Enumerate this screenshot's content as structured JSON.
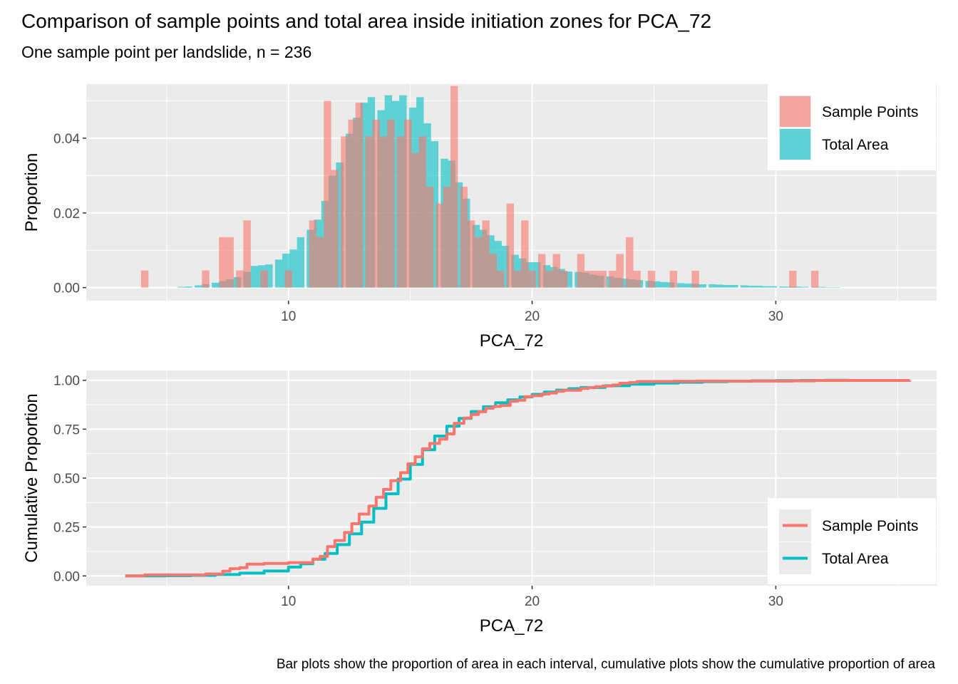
{
  "title": "Comparison of sample points and total area inside initiation zones for PCA_72",
  "subtitle": "One sample point per landslide, n = 236",
  "caption": "Bar plots show the proportion of area in each interval, cumulative plots show the cumulative proportion of area",
  "colors": {
    "sample": "#F8766D",
    "area": "#00BFC4",
    "panel": "#EBEBEB",
    "grid": "#FFFFFF"
  },
  "chart_data": [
    {
      "type": "bar",
      "xlabel": "PCA_72",
      "ylabel": "Proportion",
      "xlim": [
        1.7,
        36.6
      ],
      "ylim": [
        -0.0035,
        0.0545
      ],
      "xticks": [
        10,
        20,
        30
      ],
      "yticks": [
        0.0,
        0.02,
        0.04
      ],
      "ytick_labels": [
        "0.00",
        "0.02",
        "0.04"
      ],
      "legend_position": "top-right",
      "bin_width": 0.333,
      "series": [
        {
          "name": "Sample Points",
          "x": [
            4.1,
            6.6,
            7.3,
            7.6,
            8.0,
            8.3,
            9.0,
            10.0,
            11.0,
            11.3,
            11.6,
            11.9,
            12.3,
            12.6,
            12.9,
            13.3,
            13.6,
            13.9,
            14.2,
            14.6,
            14.9,
            15.2,
            15.5,
            15.8,
            16.2,
            16.5,
            16.8,
            17.2,
            17.5,
            17.8,
            18.1,
            18.4,
            18.7,
            19.1,
            19.4,
            19.7,
            20.0,
            20.4,
            20.7,
            21.0,
            21.3,
            22.0,
            22.3,
            22.6,
            22.9,
            23.3,
            23.6,
            24.0,
            24.3,
            24.9,
            25.8,
            26.7,
            30.7,
            31.6
          ],
          "values": [
            0.0046,
            0.0046,
            0.0135,
            0.0135,
            0.0046,
            0.018,
            0.0046,
            0.0046,
            0.018,
            0.0135,
            0.05,
            0.0315,
            0.0405,
            0.045,
            0.0495,
            0.0405,
            0.045,
            0.0405,
            0.045,
            0.0405,
            0.045,
            0.036,
            0.0405,
            0.027,
            0.0225,
            0.027,
            0.054,
            0.027,
            0.018,
            0.0135,
            0.018,
            0.009,
            0.0045,
            0.0225,
            0.0045,
            0.018,
            0.0045,
            0.009,
            0.0045,
            0.009,
            0.0045,
            0.009,
            0.0045,
            0.0045,
            0.0045,
            0.0045,
            0.009,
            0.0135,
            0.0045,
            0.0045,
            0.0045,
            0.0045,
            0.0045,
            0.0045
          ]
        },
        {
          "name": "Total Area",
          "x": [
            5.6,
            5.9,
            6.3,
            6.6,
            7.0,
            7.3,
            7.6,
            7.9,
            8.3,
            8.6,
            8.9,
            9.2,
            9.6,
            9.9,
            10.2,
            10.5,
            10.9,
            11.2,
            11.5,
            11.8,
            12.1,
            12.5,
            12.8,
            13.1,
            13.4,
            13.8,
            14.1,
            14.4,
            14.7,
            15.1,
            15.4,
            15.7,
            16.0,
            16.4,
            16.7,
            17.0,
            17.3,
            17.7,
            18.0,
            18.3,
            18.6,
            18.9,
            19.3,
            19.6,
            19.9,
            20.2,
            20.6,
            20.9,
            21.2,
            21.5,
            21.9,
            22.2,
            22.5,
            22.8,
            23.2,
            23.5,
            23.8,
            24.1,
            24.4,
            24.8,
            25.1,
            25.4,
            25.7,
            26.1,
            26.4,
            26.7,
            27.0,
            27.4,
            27.7,
            28.0,
            28.3,
            28.7,
            29.0,
            29.3,
            29.6,
            29.9,
            30.3,
            30.6,
            30.9,
            31.2,
            31.6,
            31.9,
            32.2,
            32.5
          ],
          "values": [
            0.0002,
            0.0003,
            0.0006,
            0.0009,
            0.0013,
            0.0017,
            0.0022,
            0.0028,
            0.0042,
            0.0058,
            0.006,
            0.0062,
            0.0075,
            0.0091,
            0.0102,
            0.0135,
            0.0155,
            0.0182,
            0.0232,
            0.03,
            0.0335,
            0.0412,
            0.0455,
            0.0495,
            0.051,
            0.0475,
            0.0515,
            0.05,
            0.0515,
            0.0482,
            0.051,
            0.044,
            0.0392,
            0.0345,
            0.034,
            0.0282,
            0.0238,
            0.0168,
            0.0155,
            0.014,
            0.0125,
            0.0112,
            0.0088,
            0.0078,
            0.0068,
            0.0068,
            0.006,
            0.0055,
            0.005,
            0.0043,
            0.0042,
            0.004,
            0.0035,
            0.0032,
            0.003,
            0.0026,
            0.0024,
            0.0022,
            0.002,
            0.0018,
            0.0017,
            0.0015,
            0.0014,
            0.0012,
            0.0011,
            0.001,
            0.0009,
            0.0009,
            0.0008,
            0.0007,
            0.0007,
            0.0006,
            0.0005,
            0.0005,
            0.0004,
            0.0004,
            0.0003,
            0.0003,
            0.0003,
            0.0002,
            0.0002,
            0.0002,
            0.0001,
            0.0001
          ]
        }
      ]
    },
    {
      "type": "line",
      "xlabel": "PCA_72",
      "ylabel": "Cumulative Proportion",
      "xlim": [
        1.7,
        36.6
      ],
      "ylim": [
        -0.05,
        1.05
      ],
      "xticks": [
        10,
        20,
        30
      ],
      "yticks": [
        0.0,
        0.25,
        0.5,
        0.75,
        1.0
      ],
      "ytick_labels": [
        "0.00",
        "0.25",
        "0.50",
        "0.75",
        "1.00"
      ],
      "legend_position": "bottom-right",
      "series": [
        {
          "name": "Sample Points",
          "x": [
            3.3,
            4.1,
            6.6,
            7.3,
            7.6,
            8.0,
            8.3,
            9.0,
            10.0,
            11.0,
            11.3,
            11.6,
            11.9,
            12.3,
            12.6,
            12.9,
            13.3,
            13.6,
            13.9,
            14.2,
            14.6,
            14.9,
            15.2,
            15.5,
            15.8,
            16.2,
            16.5,
            16.8,
            17.2,
            17.5,
            17.8,
            18.1,
            18.4,
            18.7,
            19.1,
            19.4,
            19.7,
            20.0,
            20.4,
            20.7,
            21.0,
            21.3,
            22.0,
            22.3,
            22.6,
            22.9,
            23.3,
            23.6,
            24.0,
            24.3,
            24.9,
            25.8,
            26.7,
            30.7,
            31.6,
            35.5
          ],
          "values": [
            0.0,
            0.005,
            0.01,
            0.024,
            0.037,
            0.042,
            0.06,
            0.064,
            0.068,
            0.086,
            0.1,
            0.15,
            0.181,
            0.222,
            0.267,
            0.316,
            0.357,
            0.402,
            0.442,
            0.487,
            0.528,
            0.573,
            0.609,
            0.65,
            0.677,
            0.699,
            0.726,
            0.78,
            0.807,
            0.825,
            0.839,
            0.857,
            0.866,
            0.871,
            0.893,
            0.898,
            0.916,
            0.921,
            0.93,
            0.935,
            0.944,
            0.949,
            0.958,
            0.962,
            0.967,
            0.971,
            0.976,
            0.985,
            0.989,
            0.994,
            0.994,
            0.995,
            0.996,
            0.997,
            0.999,
            1.0
          ]
        },
        {
          "name": "Total Area",
          "x": [
            3.3,
            5.0,
            6.0,
            7.0,
            8.0,
            9.0,
            10.0,
            10.5,
            11.0,
            11.5,
            12.0,
            12.5,
            13.0,
            13.5,
            14.0,
            14.5,
            15.0,
            15.5,
            16.0,
            16.5,
            17.0,
            17.5,
            18.0,
            18.5,
            19.0,
            19.5,
            20.0,
            20.5,
            21.0,
            21.5,
            22.0,
            23.0,
            24.0,
            25.0,
            26.0,
            27.0,
            28.0,
            29.0,
            30.0,
            31.0,
            32.0,
            33.0
          ],
          "values": [
            0.0,
            0.001,
            0.003,
            0.007,
            0.014,
            0.025,
            0.045,
            0.062,
            0.085,
            0.115,
            0.16,
            0.215,
            0.275,
            0.345,
            0.42,
            0.495,
            0.57,
            0.645,
            0.715,
            0.765,
            0.805,
            0.84,
            0.865,
            0.885,
            0.9,
            0.915,
            0.928,
            0.94,
            0.95,
            0.957,
            0.963,
            0.972,
            0.98,
            0.986,
            0.99,
            0.993,
            0.995,
            0.997,
            0.998,
            0.999,
            1.0,
            1.0
          ]
        }
      ]
    }
  ]
}
